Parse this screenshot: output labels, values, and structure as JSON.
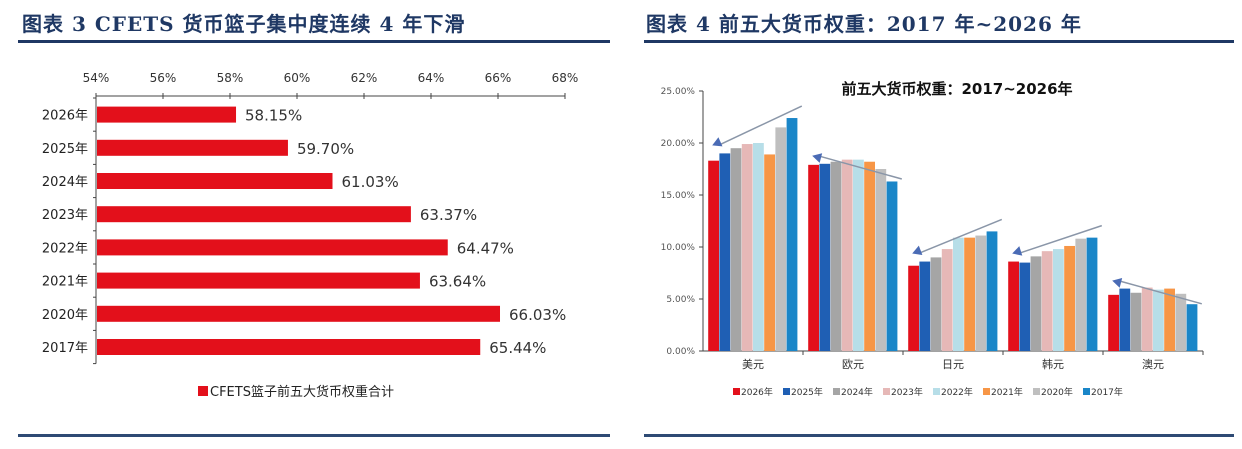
{
  "left": {
    "figure_title": "图表 3   CFETS 货币篮子集中度连续 4 年下滑"
  },
  "right": {
    "figure_title": "图表 4   前五大货币权重：2017 年~2026 年"
  },
  "colors": {
    "title": "#1f3864",
    "bar_red": "#e3101b",
    "rule": "#1f3864"
  },
  "chart_data": [
    {
      "type": "bar",
      "orientation": "horizontal",
      "title": "CFETS 货币篮子集中度连续 4 年下滑",
      "categories": [
        "2026年",
        "2025年",
        "2024年",
        "2023年",
        "2022年",
        "2021年",
        "2020年",
        "2017年"
      ],
      "values": [
        58.15,
        59.7,
        61.03,
        63.37,
        64.47,
        63.64,
        66.03,
        65.44
      ],
      "value_labels": [
        "58.15%",
        "59.70%",
        "61.03%",
        "63.37%",
        "64.47%",
        "63.64%",
        "66.03%",
        "65.44%"
      ],
      "xaxis_position": "top",
      "xticks": [
        "54%",
        "56%",
        "58%",
        "60%",
        "62%",
        "64%",
        "66%",
        "68%"
      ],
      "xlim": [
        54,
        68
      ],
      "xlabel": "",
      "ylabel": "",
      "legend": [
        "CFETS篮子前五大货币权重合计"
      ],
      "legend_position": "bottom",
      "color": "#e3101b",
      "grid": false
    },
    {
      "type": "bar",
      "title": "前五大货币权重：2017~2026年",
      "categories": [
        "美元",
        "欧元",
        "日元",
        "韩元",
        "澳元"
      ],
      "series": [
        {
          "name": "2026年",
          "color": "#e3101b",
          "values": [
            18.3,
            17.9,
            8.2,
            8.6,
            5.4
          ]
        },
        {
          "name": "2025年",
          "color": "#1f5fb4",
          "values": [
            19.0,
            18.0,
            8.6,
            8.5,
            6.0
          ]
        },
        {
          "name": "2024年",
          "color": "#a5a5a5",
          "values": [
            19.5,
            18.2,
            9.0,
            9.1,
            5.6
          ]
        },
        {
          "name": "2023年",
          "color": "#e6b8b7",
          "values": [
            19.9,
            18.4,
            9.8,
            9.6,
            6.1
          ]
        },
        {
          "name": "2022年",
          "color": "#b7dee8",
          "values": [
            20.0,
            18.4,
            10.9,
            9.8,
            5.9
          ]
        },
        {
          "name": "2021年",
          "color": "#f79646",
          "values": [
            18.9,
            18.2,
            10.9,
            10.1,
            6.0
          ]
        },
        {
          "name": "2020年",
          "color": "#bfbfbf",
          "values": [
            21.5,
            17.5,
            11.1,
            10.8,
            5.5
          ]
        },
        {
          "name": "2017年",
          "color": "#1a86c8",
          "values": [
            22.4,
            16.3,
            11.5,
            10.9,
            4.5
          ]
        }
      ],
      "yticks": [
        "0.00%",
        "5.00%",
        "10.00%",
        "15.00%",
        "20.00%",
        "25.00%"
      ],
      "ylim": [
        0,
        25
      ],
      "xlabel": "",
      "ylabel": "",
      "legend_position": "bottom",
      "annotations": [
        "trend arrows per currency group from 2017 toward 2026"
      ],
      "grid": false
    }
  ]
}
